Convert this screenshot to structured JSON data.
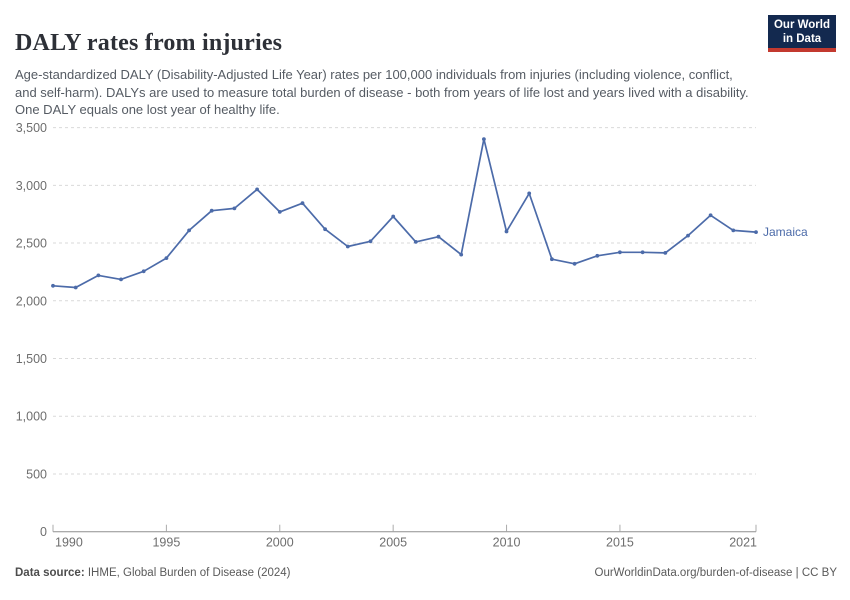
{
  "header": {
    "title": "DALY rates from injuries",
    "subtitle": "Age-standardized DALY (Disability-Adjusted Life Year) rates per 100,000 individuals from injuries (including violence, conflict, and self-harm). DALYs are used to measure total burden of disease - both from years of life lost and years lived with a disability. One DALY equals one lost year of healthy life.",
    "logo": {
      "line1": "Our World",
      "line2": "in Data",
      "bg_color": "#13294F",
      "accent_color": "#C3392F"
    }
  },
  "chart_data": {
    "type": "line",
    "title": "DALY rates from injuries",
    "x": [
      1990,
      1991,
      1992,
      1993,
      1994,
      1995,
      1996,
      1997,
      1998,
      1999,
      2000,
      2001,
      2002,
      2003,
      2004,
      2005,
      2006,
      2007,
      2008,
      2009,
      2010,
      2011,
      2012,
      2013,
      2014,
      2015,
      2016,
      2017,
      2018,
      2019,
      2020,
      2021
    ],
    "series": [
      {
        "name": "Jamaica",
        "color": "#4C6BA9",
        "values": [
          2130,
          2115,
          2220,
          2185,
          2255,
          2370,
          2610,
          2780,
          2800,
          2965,
          2770,
          2845,
          2620,
          2470,
          2515,
          2730,
          2510,
          2555,
          2400,
          3400,
          2600,
          2930,
          2360,
          2320,
          2390,
          2420,
          2420,
          2415,
          2565,
          2740,
          2610,
          2595
        ]
      }
    ],
    "xlabel": "",
    "ylabel": "",
    "ylim": [
      0,
      3500
    ],
    "yticks": [
      0,
      500,
      1000,
      1500,
      2000,
      2500,
      3000,
      3500
    ],
    "xticks": [
      1990,
      1995,
      2000,
      2005,
      2010,
      2015,
      2021
    ],
    "grid": "horizontal-dashed",
    "legend_position": "end-of-line",
    "axis_color": "#8f8f8f",
    "grid_color": "#d9d9d9",
    "tick_label_color": "#6e6e6e"
  },
  "footer": {
    "datasource_label": "Data source:",
    "datasource_value": " IHME, Global Burden of Disease (2024)",
    "link": "OurWorldinData.org/burden-of-disease",
    "divider": " | ",
    "license": "CC BY"
  }
}
